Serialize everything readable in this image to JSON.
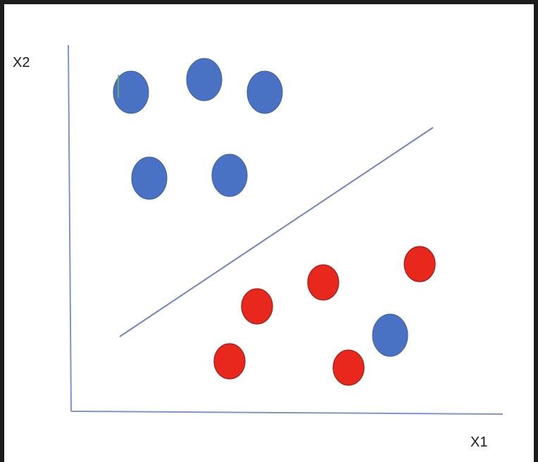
{
  "axes": {
    "x_label": "X1",
    "y_label": "X2",
    "color": "#7f95c6"
  },
  "separator": {
    "color": "#7085c0"
  },
  "classes": {
    "blue": {
      "fill": "#4a72c4",
      "stroke": "#3d5d9e"
    },
    "red": {
      "fill": "#e8271d",
      "stroke": "#9e1e18"
    }
  }
}
